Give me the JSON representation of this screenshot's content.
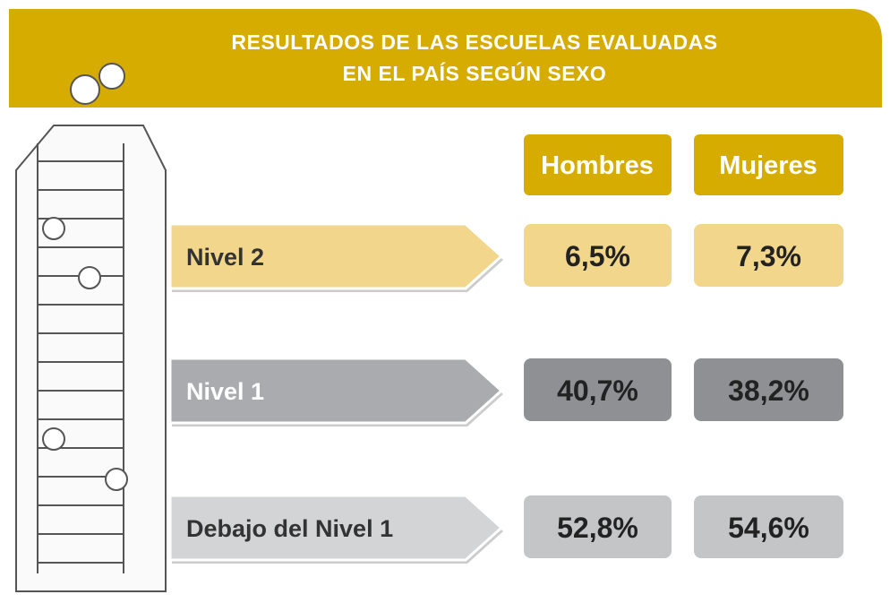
{
  "header": {
    "title_lines": [
      "RESULTADOS DE LAS ESCUELAS EVALUADAS",
      "EN EL PAÍS SEGÚN SEXO"
    ]
  },
  "table": {
    "columns": [
      "Hombres",
      "Mujeres"
    ],
    "rows": [
      {
        "label": "Nivel 2",
        "values": [
          "6,5%",
          "7,3%"
        ]
      },
      {
        "label": "Nivel 1",
        "values": [
          "40,7%",
          "38,2%"
        ]
      },
      {
        "label": "Debajo del Nivel 1",
        "values": [
          "52,8%",
          "54,6%"
        ]
      }
    ]
  }
}
